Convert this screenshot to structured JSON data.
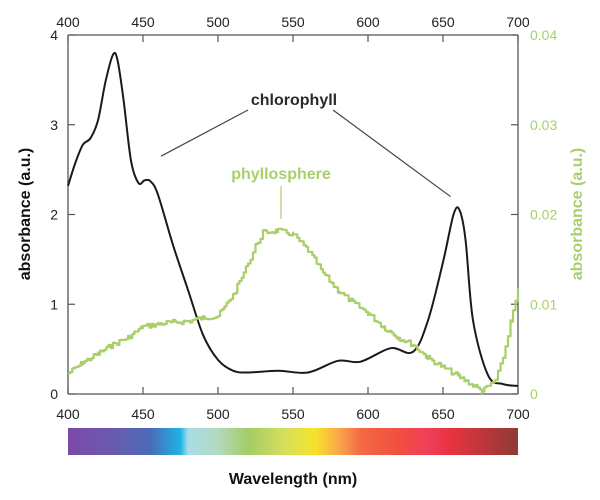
{
  "chart_data": {
    "type": "line",
    "title": "",
    "xlabel": "Wavelength (nm)",
    "ylabel": "absorbance (a.u.)",
    "ylabel_right": "absorbance (a.u.)",
    "xlim": [
      400,
      700
    ],
    "ylim": [
      0,
      4
    ],
    "ylim_right": [
      0,
      0.04
    ],
    "x_ticks": [
      400,
      450,
      500,
      550,
      600,
      650,
      700
    ],
    "x_tick_labels": [
      "400",
      "450",
      "500",
      "550",
      "600",
      "650",
      "700"
    ],
    "y_ticks": [
      0,
      1,
      2,
      3,
      4
    ],
    "y_tick_labels": [
      "0",
      "1",
      "2",
      "3",
      "4"
    ],
    "y_right_ticks": [
      0,
      0.01,
      0.02,
      0.03,
      0.04
    ],
    "y_right_tick_labels": [
      "0",
      "0.01",
      "0.02",
      "0.03",
      "0.04"
    ],
    "grid": false,
    "colors": {
      "chlorophyll": "#1a1a1a",
      "phyllosphere": "#a9cf6a",
      "axis": "#555555"
    },
    "series": [
      {
        "name": "chlorophyll",
        "axis": "left",
        "x": [
          400,
          405,
          410,
          415,
          420,
          425,
          430,
          433,
          437,
          442,
          447,
          451,
          455,
          460,
          470,
          480,
          490,
          500,
          510,
          520,
          540,
          560,
          580,
          595,
          615,
          630,
          640,
          650,
          657,
          661,
          665,
          670,
          680,
          690,
          700
        ],
        "y": [
          2.32,
          2.58,
          2.78,
          2.85,
          3.05,
          3.48,
          3.78,
          3.72,
          3.28,
          2.6,
          2.35,
          2.38,
          2.37,
          2.22,
          1.66,
          1.16,
          0.66,
          0.38,
          0.26,
          0.24,
          0.26,
          0.24,
          0.37,
          0.36,
          0.51,
          0.47,
          0.82,
          1.47,
          2.0,
          2.05,
          1.72,
          0.82,
          0.21,
          0.11,
          0.09
        ]
      },
      {
        "name": "phyllosphere",
        "axis": "right",
        "x": [
          400,
          410,
          420,
          430,
          440,
          450,
          460,
          470,
          480,
          490,
          500,
          510,
          520,
          525,
          530,
          540,
          550,
          560,
          570,
          580,
          590,
          600,
          610,
          620,
          630,
          640,
          650,
          660,
          670,
          676,
          685,
          690,
          695,
          700
        ],
        "y": [
          0.0023,
          0.0035,
          0.0045,
          0.0055,
          0.0063,
          0.0075,
          0.0078,
          0.008,
          0.0081,
          0.0085,
          0.0087,
          0.011,
          0.0145,
          0.0165,
          0.018,
          0.0182,
          0.0178,
          0.016,
          0.0135,
          0.0115,
          0.0102,
          0.009,
          0.0075,
          0.0063,
          0.0055,
          0.004,
          0.003,
          0.002,
          0.001,
          0.0003,
          0.0015,
          0.004,
          0.008,
          0.0115
        ]
      }
    ],
    "annotations": [
      {
        "text": "chlorophyll",
        "series": "chlorophyll",
        "points_to": [
          [
            462,
            2.65
          ],
          [
            655,
            2.2
          ]
        ]
      },
      {
        "text": "phyllosphere",
        "series": "phyllosphere",
        "points_to": [
          [
            541,
            0.0195
          ]
        ]
      }
    ],
    "spectrum_bar": {
      "range": [
        400,
        700
      ],
      "stops": [
        {
          "nm": 400,
          "color": "#7b4aa8"
        },
        {
          "nm": 430,
          "color": "#6a5aad"
        },
        {
          "nm": 455,
          "color": "#4a6bb8"
        },
        {
          "nm": 475,
          "color": "#1fb3e5"
        },
        {
          "nm": 480,
          "color": "#a8dce8"
        },
        {
          "nm": 500,
          "color": "#b3d9c0"
        },
        {
          "nm": 520,
          "color": "#a3cd66"
        },
        {
          "nm": 545,
          "color": "#d6e05a"
        },
        {
          "nm": 565,
          "color": "#f7e22a"
        },
        {
          "nm": 580,
          "color": "#f9a94a"
        },
        {
          "nm": 595,
          "color": "#f46a45"
        },
        {
          "nm": 620,
          "color": "#f24f40"
        },
        {
          "nm": 640,
          "color": "#ee3f5a"
        },
        {
          "nm": 655,
          "color": "#e83340"
        },
        {
          "nm": 700,
          "color": "#8e3b35"
        }
      ]
    },
    "legend": "none"
  }
}
